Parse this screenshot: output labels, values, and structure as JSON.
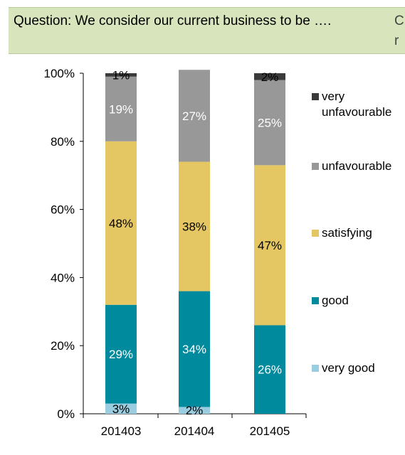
{
  "header": {
    "question": "Question: We consider our current business to be ….",
    "cut_char_top": "C",
    "cut_char_bottom": "r"
  },
  "chart_data": {
    "type": "bar",
    "stacked": true,
    "categories": [
      "201403",
      "201404",
      "201405"
    ],
    "series": [
      {
        "name": "very good",
        "values": [
          3,
          2,
          0
        ],
        "labels": [
          "3%",
          "2%",
          ""
        ],
        "color": "#9bcde0",
        "label_color": "#000000"
      },
      {
        "name": "good",
        "values": [
          29,
          34,
          26
        ],
        "labels": [
          "29%",
          "34%",
          "26%"
        ],
        "color": "#008a9e",
        "label_color": "#ffffff"
      },
      {
        "name": "satisfying",
        "values": [
          48,
          38,
          47
        ],
        "labels": [
          "48%",
          "38%",
          "47%"
        ],
        "color": "#e4c762",
        "label_color": "#000000"
      },
      {
        "name": "unfavourable",
        "values": [
          19,
          27,
          25
        ],
        "labels": [
          "19%",
          "27%",
          "25%"
        ],
        "color": "#989898",
        "label_color": "#ffffff"
      },
      {
        "name": "very unfavourable",
        "values": [
          1,
          0,
          2
        ],
        "labels": [
          "1%",
          "",
          "2%"
        ],
        "color": "#3a3a3a",
        "label_color": "#000000"
      }
    ],
    "legend": [
      {
        "lines": [
          "very",
          "unfavourable"
        ],
        "color": "#3a3a3a"
      },
      {
        "lines": [
          "unfavourable"
        ],
        "color": "#989898"
      },
      {
        "lines": [
          "satisfying"
        ],
        "color": "#e4c762"
      },
      {
        "lines": [
          "good"
        ],
        "color": "#008a9e"
      },
      {
        "lines": [
          "very good"
        ],
        "color": "#9bcde0"
      }
    ],
    "legend_position": "right",
    "y_ticks": [
      "0%",
      "20%",
      "40%",
      "60%",
      "80%",
      "100%"
    ],
    "ylim": [
      0,
      100
    ],
    "grid": false
  }
}
